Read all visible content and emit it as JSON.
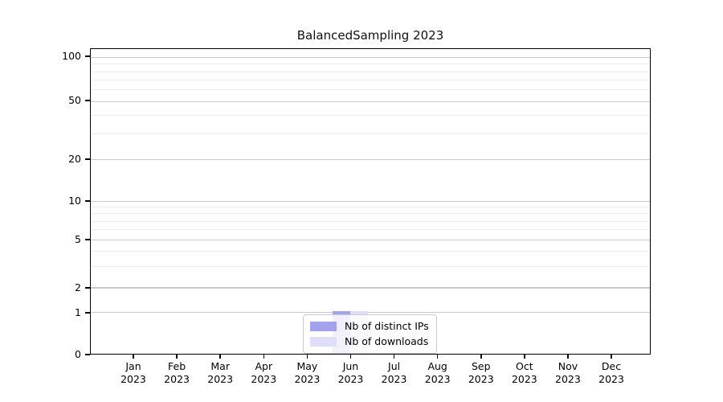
{
  "title": "BalancedSampling 2023",
  "chart_data": {
    "type": "bar",
    "title": "BalancedSampling 2023",
    "categories": [
      "Jan 2023",
      "Feb 2023",
      "Mar 2023",
      "Apr 2023",
      "May 2023",
      "Jun 2023",
      "Jul 2023",
      "Aug 2023",
      "Sep 2023",
      "Oct 2023",
      "Nov 2023",
      "Dec 2023"
    ],
    "series": [
      {
        "name": "Nb of distinct IPs",
        "color": "#a2a2ef",
        "values": [
          0,
          0,
          0,
          0,
          0,
          1,
          0,
          0,
          0,
          0,
          0,
          0
        ]
      },
      {
        "name": "Nb of downloads",
        "color": "#dedef9",
        "values": [
          0,
          0,
          0,
          0,
          0,
          1,
          0,
          0,
          0,
          0,
          0,
          0
        ]
      }
    ],
    "xlabel": "",
    "ylabel": "",
    "yticks": [
      100,
      50,
      20,
      10,
      5,
      2,
      1,
      0
    ],
    "yscale": "log above 1, linear segment from 1 down to 0",
    "ylim": [
      0,
      110
    ],
    "grid": "horizontal major and minor gridlines",
    "legend_position": "lower center inside plot"
  },
  "colors": {
    "bar_distinct_ips": "#a2a2ef",
    "bar_downloads": "#dedef9",
    "grid_major": "#c9c9c9",
    "grid_minor": "#ececec",
    "spine": "#000000",
    "background": "#ffffff",
    "legend_border": "#cbcbcb"
  }
}
